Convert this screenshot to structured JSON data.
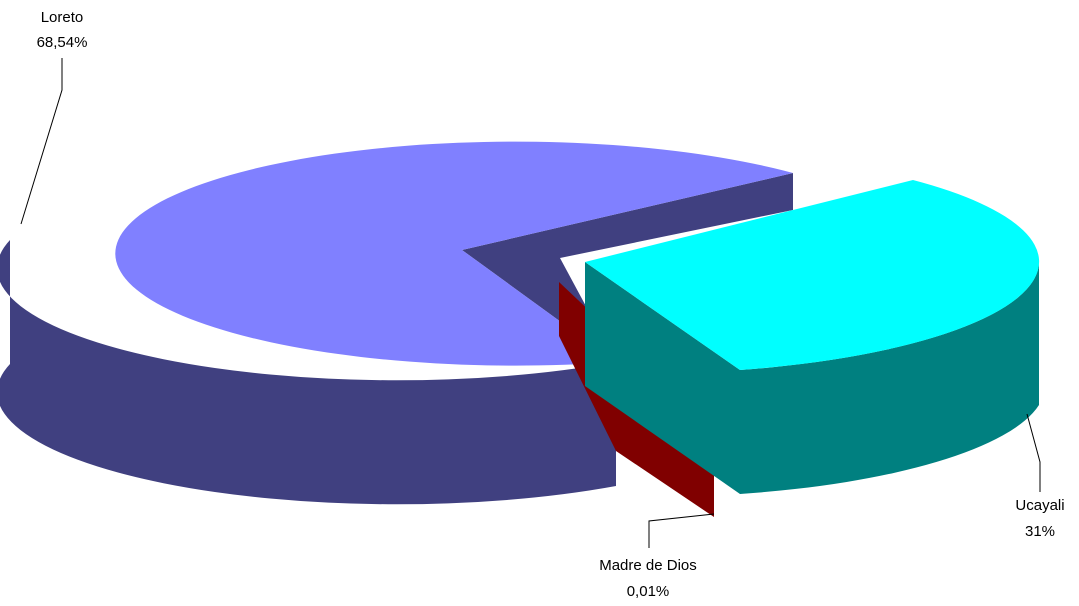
{
  "chart_data": {
    "type": "pie",
    "title": "",
    "style": "3d-exploded",
    "slices": [
      {
        "label": "Loreto",
        "value_label": "68,54%",
        "value": 68.54,
        "top_color": "#8080ff",
        "side_color": "#404080"
      },
      {
        "label": "Ucayali",
        "value_label": "31%",
        "value": 31.0,
        "top_color": "#00ffff",
        "side_color": "#008080"
      },
      {
        "label": "Madre de Dios",
        "value_label": "0,01%",
        "value": 0.01,
        "top_color": "#800000",
        "side_color": "#800000"
      }
    ]
  }
}
